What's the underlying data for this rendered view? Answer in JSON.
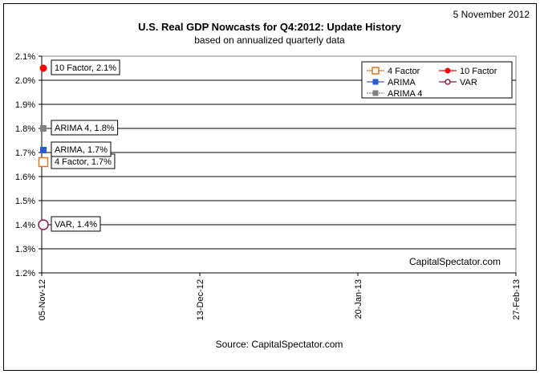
{
  "chart_data": {
    "type": "scatter",
    "date_stamp": "5 November 2012",
    "title": "U.S. Real GDP Nowcasts for Q4:2012: Update History",
    "subtitle": "based on annualized quarterly data",
    "source": "Source: CapitalSpectator.com",
    "watermark": "CapitalSpectator.com",
    "xlabel": "",
    "ylabel": "",
    "x_ticks": [
      "05-Nov-12",
      "13-Dec-12",
      "20-Jan-13",
      "27-Feb-13"
    ],
    "y_ticks": [
      "1.2%",
      "1.3%",
      "1.4%",
      "1.5%",
      "1.6%",
      "1.7%",
      "1.8%",
      "1.9%",
      "2.0%",
      "2.1%"
    ],
    "ylim": [
      1.2,
      2.1
    ],
    "grid": true,
    "legend_position": "top-right",
    "series": [
      {
        "name": "4 Factor",
        "color": "#e8741f",
        "marker": "square-open",
        "x": [
          "05-Nov-12"
        ],
        "y": [
          1.66
        ],
        "label": "4 Factor, 1.7%"
      },
      {
        "name": "10 Factor",
        "color": "#ff0000",
        "marker": "circle-filled",
        "x": [
          "05-Nov-12"
        ],
        "y": [
          2.05
        ],
        "label": "10 Factor, 2.1%"
      },
      {
        "name": "ARIMA",
        "color": "#2a5bd7",
        "marker": "square-filled",
        "x": [
          "05-Nov-12"
        ],
        "y": [
          1.71
        ],
        "label": "ARIMA, 1.7%"
      },
      {
        "name": "VAR",
        "color": "#8b1a4a",
        "marker": "circle-open",
        "x": [
          "05-Nov-12"
        ],
        "y": [
          1.4
        ],
        "label": "VAR, 1.4%"
      },
      {
        "name": "ARIMA 4",
        "color": "#808080",
        "marker": "square-filled",
        "x": [
          "05-Nov-12"
        ],
        "y": [
          1.8
        ],
        "label": "ARIMA 4, 1.8%"
      }
    ]
  }
}
